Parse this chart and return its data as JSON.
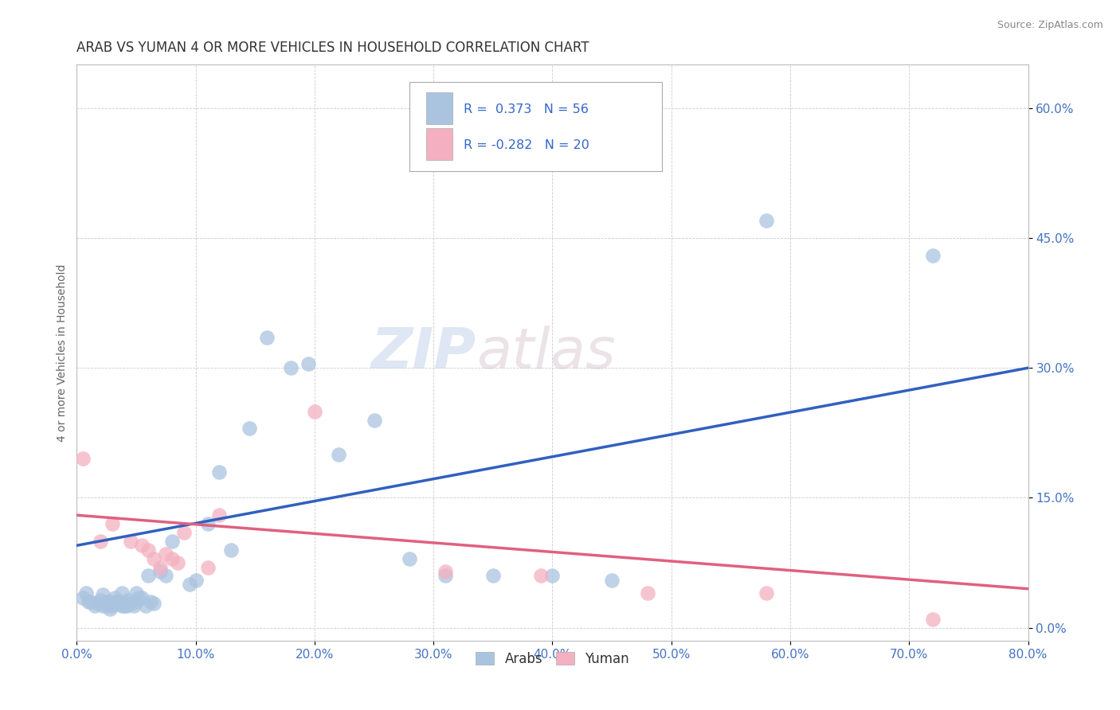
{
  "title": "ARAB VS YUMAN 4 OR MORE VEHICLES IN HOUSEHOLD CORRELATION CHART",
  "source": "Source: ZipAtlas.com",
  "xlim": [
    0,
    0.8
  ],
  "ylim": [
    -0.015,
    0.65
  ],
  "R_arab": 0.373,
  "N_arab": 56,
  "R_yuman": -0.282,
  "N_yuman": 20,
  "arab_color": "#aac4e0",
  "yuman_color": "#f4b0c0",
  "arab_line_color": "#3060c0",
  "yuman_line_color": "#e06080",
  "watermark_zip": "ZIP",
  "watermark_atlas": "atlas",
  "legend_labels": [
    "Arabs",
    "Yuman"
  ],
  "arab_points_x": [
    0.005,
    0.008,
    0.01,
    0.012,
    0.015,
    0.018,
    0.02,
    0.022,
    0.022,
    0.025,
    0.025,
    0.028,
    0.028,
    0.03,
    0.03,
    0.032,
    0.033,
    0.035,
    0.035,
    0.038,
    0.038,
    0.04,
    0.04,
    0.042,
    0.043,
    0.045,
    0.048,
    0.05,
    0.05,
    0.052,
    0.055,
    0.058,
    0.06,
    0.062,
    0.065,
    0.07,
    0.075,
    0.08,
    0.095,
    0.1,
    0.11,
    0.12,
    0.13,
    0.145,
    0.16,
    0.18,
    0.195,
    0.22,
    0.25,
    0.28,
    0.31,
    0.35,
    0.4,
    0.45,
    0.58,
    0.72
  ],
  "arab_points_y": [
    0.035,
    0.04,
    0.03,
    0.03,
    0.025,
    0.028,
    0.032,
    0.025,
    0.038,
    0.025,
    0.03,
    0.03,
    0.022,
    0.028,
    0.025,
    0.035,
    0.03,
    0.028,
    0.03,
    0.025,
    0.04,
    0.03,
    0.025,
    0.025,
    0.032,
    0.028,
    0.025,
    0.04,
    0.03,
    0.035,
    0.035,
    0.025,
    0.06,
    0.03,
    0.028,
    0.065,
    0.06,
    0.1,
    0.05,
    0.055,
    0.12,
    0.18,
    0.09,
    0.23,
    0.335,
    0.3,
    0.305,
    0.2,
    0.24,
    0.08,
    0.06,
    0.06,
    0.06,
    0.055,
    0.47,
    0.43
  ],
  "yuman_points_x": [
    0.005,
    0.02,
    0.03,
    0.045,
    0.055,
    0.06,
    0.065,
    0.07,
    0.075,
    0.08,
    0.085,
    0.09,
    0.11,
    0.12,
    0.2,
    0.31,
    0.39,
    0.48,
    0.58,
    0.72
  ],
  "yuman_points_y": [
    0.195,
    0.1,
    0.12,
    0.1,
    0.095,
    0.09,
    0.08,
    0.07,
    0.085,
    0.08,
    0.075,
    0.11,
    0.07,
    0.13,
    0.25,
    0.065,
    0.06,
    0.04,
    0.04,
    0.01
  ],
  "background_color": "#ffffff",
  "grid_color": "#cccccc"
}
